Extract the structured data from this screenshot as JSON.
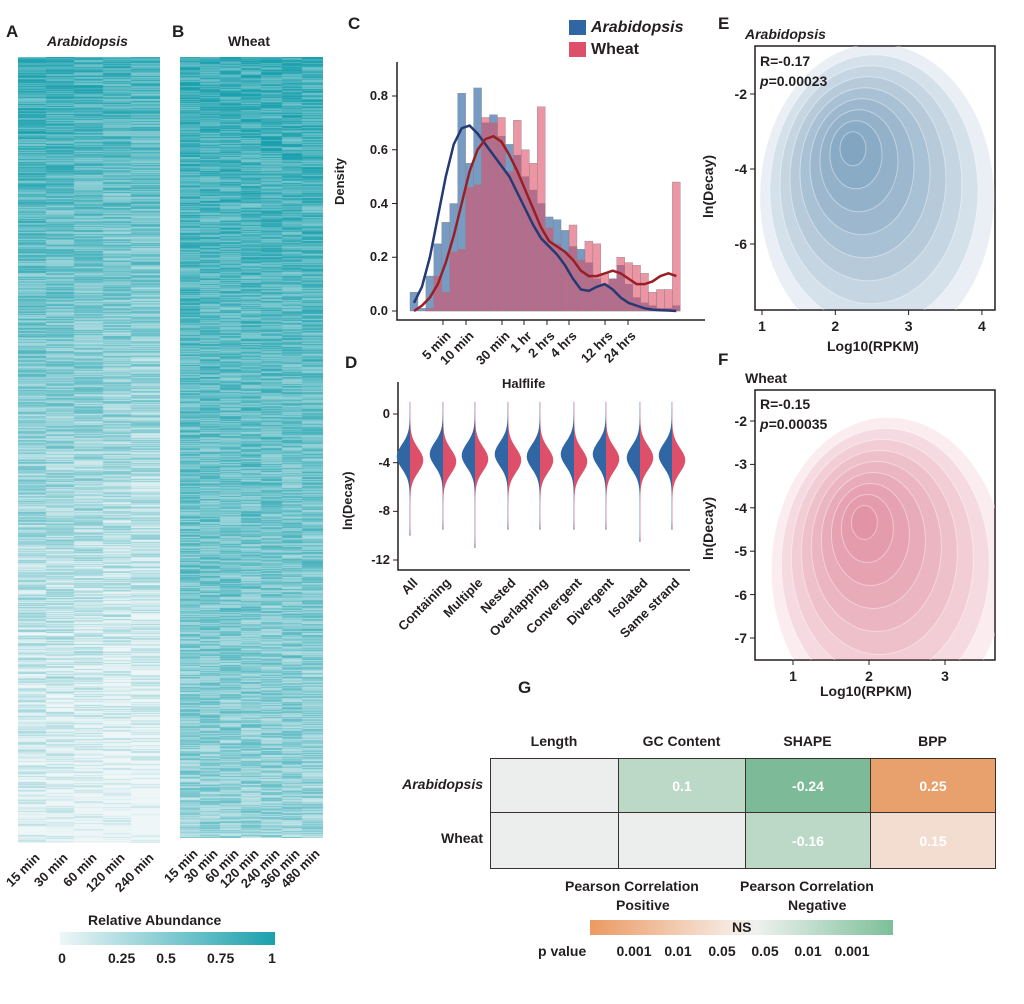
{
  "panels": {
    "a": "A",
    "b": "B",
    "c": "C",
    "d": "D",
    "e": "E",
    "f": "F",
    "g": "G"
  },
  "chart_data": [
    {
      "id": "A",
      "type": "heatmap",
      "title": "Arabidopsis",
      "columns": [
        "15 min",
        "30 min",
        "60 min",
        "120 min",
        "240 min"
      ],
      "colorbar": {
        "title": "Relative Abundance",
        "ticks": [
          "0",
          "0.25",
          "0.5",
          "0.75",
          "1"
        ],
        "low": "#eef6f7",
        "high": "#1aa0ad"
      }
    },
    {
      "id": "B",
      "type": "heatmap",
      "title": "Wheat",
      "columns": [
        "15 min",
        "30 min",
        "60 min",
        "120 min",
        "240 min",
        "360 min",
        "480 min"
      ]
    },
    {
      "id": "C",
      "type": "bar",
      "ylabel": "Density",
      "xlabel": "Halflife",
      "yticks": [
        "0.0",
        "0.2",
        "0.4",
        "0.6",
        "0.8"
      ],
      "ylim": [
        0,
        0.9
      ],
      "xticks": [
        "5 min",
        "10 min",
        "30 min",
        "1 hr",
        "2 hrs",
        "4 hrs",
        "12 hrs",
        "24 hrs"
      ],
      "legend": [
        "Arabidopsis",
        "Wheat"
      ],
      "series": [
        {
          "name": "Arabidopsis",
          "color": "#2f66a3",
          "values": [
            0.07,
            0.01,
            0.13,
            0.25,
            0.33,
            0.4,
            0.81,
            0.55,
            0.83,
            0.7,
            0.73,
            0.65,
            0.62,
            0.58,
            0.5,
            0.45,
            0.4,
            0.35,
            0.34,
            0.3,
            0.24,
            0.23,
            0.18,
            0.12,
            0.1,
            0.12,
            0.17,
            0.1,
            0.05,
            0.03,
            0.02,
            0.01,
            0.01,
            0.02
          ],
          "kde": [
            0.03,
            0.09,
            0.2,
            0.35,
            0.5,
            0.62,
            0.68,
            0.69,
            0.66,
            0.62,
            0.58,
            0.54,
            0.5,
            0.44,
            0.38,
            0.32,
            0.27,
            0.24,
            0.21,
            0.17,
            0.12,
            0.08,
            0.075,
            0.09,
            0.1,
            0.08,
            0.05,
            0.03,
            0.02,
            0.01,
            0.005,
            0.003,
            0.002,
            0.0
          ]
        },
        {
          "name": "Wheat",
          "color": "#de4f69",
          "values": [
            0.0,
            0.0,
            0.01,
            0.13,
            0.07,
            0.22,
            0.23,
            0.46,
            0.47,
            0.72,
            0.7,
            0.72,
            0.52,
            0.71,
            0.6,
            0.55,
            0.76,
            0.31,
            0.25,
            0.22,
            0.32,
            0.19,
            0.26,
            0.25,
            0.14,
            0.12,
            0.2,
            0.18,
            0.17,
            0.14,
            0.07,
            0.08,
            0.08,
            0.48
          ],
          "kde": [
            0.0,
            0.02,
            0.05,
            0.1,
            0.18,
            0.28,
            0.4,
            0.52,
            0.6,
            0.64,
            0.65,
            0.63,
            0.58,
            0.52,
            0.45,
            0.38,
            0.31,
            0.26,
            0.24,
            0.22,
            0.19,
            0.15,
            0.13,
            0.13,
            0.14,
            0.15,
            0.14,
            0.12,
            0.1,
            0.1,
            0.11,
            0.13,
            0.14,
            0.13
          ]
        }
      ]
    },
    {
      "id": "D",
      "type": "violin",
      "ylabel": "ln(Decay)",
      "yticks": [
        "0",
        "-4",
        "-8",
        "-12"
      ],
      "ylim": [
        -12,
        1
      ],
      "categories": [
        "All",
        "Containing",
        "Multiple",
        "Nested",
        "Overlapping",
        "Convergent",
        "Divergent",
        "Isolated",
        "Same strand"
      ],
      "arabidopsis_median": [
        -3.5,
        -3.3,
        -3.4,
        -3.3,
        -3.5,
        -3.3,
        -3.3,
        -3.6,
        -3.4
      ],
      "wheat_median": [
        -3.8,
        -3.9,
        -3.7,
        -3.8,
        -3.8,
        -3.9,
        -3.7,
        -3.6,
        -3.8
      ],
      "min": [
        -10,
        -9.5,
        -11,
        -9.5,
        -9.5,
        -9.5,
        -9.5,
        -10.5,
        -9.5
      ]
    },
    {
      "id": "E",
      "type": "density",
      "title": "Arabidopsis",
      "xlabel": "Log10(RPKM)",
      "ylabel": "ln(Decay)",
      "r": "R=-0.17",
      "p_label": "p",
      "p_value": "=0.00023",
      "xticks": [
        "1",
        "2",
        "3",
        "4"
      ],
      "yticks": [
        "-2",
        "-4",
        "-6"
      ],
      "peak": [
        2.2,
        -3.3
      ],
      "color": "#4a7aa6"
    },
    {
      "id": "F",
      "type": "density",
      "title": "Wheat",
      "xlabel": "Log10(RPKM)",
      "ylabel": "ln(Decay)",
      "r": "R=-0.15",
      "p_label": "p",
      "p_value": "=0.00035",
      "xticks": [
        "1",
        "2",
        "3"
      ],
      "yticks": [
        "-2",
        "-3",
        "-4",
        "-5",
        "-6",
        "-7"
      ],
      "peak": [
        1.9,
        -4.2
      ],
      "color": "#d9627f"
    },
    {
      "id": "G",
      "type": "table",
      "columns": [
        "Length",
        "GC Content",
        "SHAPE",
        "BPP"
      ],
      "rows": [
        {
          "label": "Arabidopsis",
          "cells": [
            "",
            "0.1",
            "-0.24",
            "0.25"
          ],
          "colors": [
            "#eceeee",
            "#bcd9c8",
            "#7dba98",
            "#e8a06d"
          ]
        },
        {
          "label": "Wheat",
          "cells": [
            "",
            "",
            "-0.16",
            "0.15"
          ],
          "colors": [
            "#eceeee",
            "#eceeee",
            "#bcd9c8",
            "#f3ddd0"
          ]
        }
      ],
      "legend": {
        "positive": [
          "Pearson Correlation",
          "Positive"
        ],
        "negative": [
          "Pearson Correlation",
          "Negative"
        ],
        "ns": "NS",
        "p_label": "p value",
        "ticks": [
          "0.001",
          "0.01",
          "0.05",
          "0.05",
          "0.01",
          "0.001"
        ]
      }
    }
  ]
}
